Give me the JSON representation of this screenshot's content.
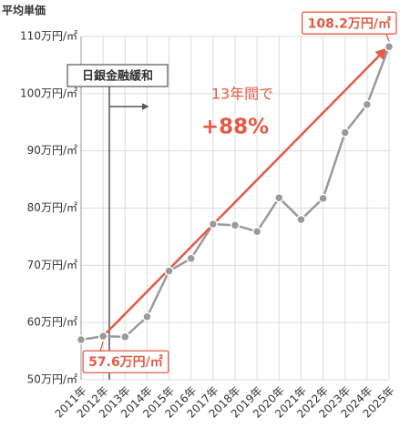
{
  "chart_data": {
    "type": "line",
    "y_axis_label": "平均単価",
    "categories": [
      "2011年",
      "2012年",
      "2013年",
      "2014年",
      "2015年",
      "2016年",
      "2017年",
      "2018年",
      "2019年",
      "2020年",
      "2021年",
      "2022年",
      "2023年",
      "2024年",
      "2025年"
    ],
    "series": [
      {
        "name": "平均単価",
        "color": "#9a9a9a",
        "values": [
          57.0,
          57.6,
          57.5,
          61.0,
          69.0,
          71.2,
          77.2,
          77.0,
          75.9,
          81.8,
          78.0,
          81.7,
          93.2,
          98.1,
          108.2
        ],
        "value_labels": [
          null,
          "57.6万円/㎡",
          null,
          null,
          null,
          null,
          null,
          null,
          null,
          null,
          null,
          null,
          null,
          null,
          "108.2万円/㎡"
        ]
      }
    ],
    "ylim": [
      50,
      110
    ],
    "yticks": [
      {
        "value": 50,
        "label": "50万円/㎡"
      },
      {
        "value": 60,
        "label": "60万円/㎡"
      },
      {
        "value": 70,
        "label": "70万円/㎡"
      },
      {
        "value": 80,
        "label": "80万円/㎡"
      },
      {
        "value": 90,
        "label": "90万円/㎡"
      },
      {
        "value": 100,
        "label": "100万円/㎡"
      },
      {
        "value": 110,
        "label": "110万円/㎡"
      }
    ],
    "grid": true,
    "highlight_color": "#e35a45",
    "annotations": [
      "日銀金融緩和",
      "13年間で",
      "+88%"
    ]
  }
}
